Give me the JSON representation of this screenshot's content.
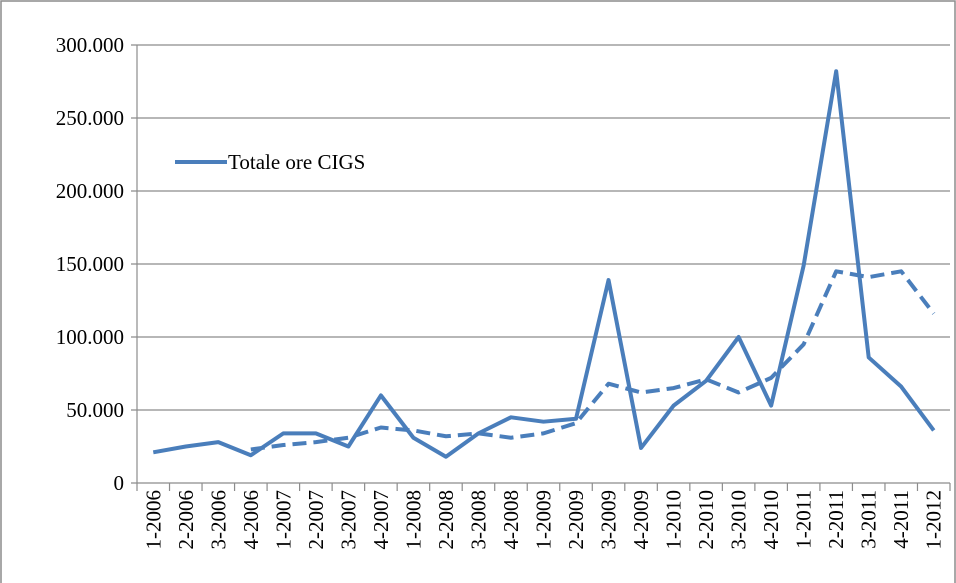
{
  "chart_data": {
    "type": "line",
    "categories": [
      "1-2006",
      "2-2006",
      "3-2006",
      "4-2006",
      "1-2007",
      "2-2007",
      "3-2007",
      "4-2007",
      "1-2008",
      "2-2008",
      "3-2008",
      "4-2008",
      "1-2009",
      "2-2009",
      "3-2009",
      "4-2009",
      "1-2010",
      "2-2010",
      "3-2010",
      "4-2010",
      "1-2011",
      "2-2011",
      "3-2011",
      "4-2011",
      "1-2012"
    ],
    "series": [
      {
        "name": "Totale ore CIGS",
        "color": "#4a7ebb",
        "dash": false,
        "values": [
          21000,
          25000,
          28000,
          19000,
          34000,
          34000,
          25000,
          60000,
          31000,
          18000,
          34000,
          45000,
          42000,
          44000,
          139000,
          24000,
          53000,
          70000,
          100000,
          53000,
          149000,
          282000,
          86000,
          66000,
          36000
        ]
      },
      {
        "color": "#4a7ebb",
        "dash": true,
        "values": [
          null,
          null,
          null,
          23000,
          26000,
          28000,
          31000,
          38000,
          36000,
          32000,
          34000,
          31000,
          34000,
          41000,
          68000,
          62000,
          65000,
          71000,
          62000,
          72000,
          95000,
          145000,
          141000,
          145000,
          116000
        ]
      }
    ],
    "ylim": [
      0,
      300000
    ],
    "yticks": [
      0,
      {
        "value": 50000,
        "label": "50.000"
      },
      {
        "value": 100000,
        "label": "100.000"
      },
      {
        "value": 150000,
        "label": "150.000"
      },
      {
        "value": 200000,
        "label": "200.000"
      },
      {
        "value": 250000,
        "label": "250.000"
      },
      {
        "value": 300000,
        "label": "300.000"
      }
    ],
    "grid": true,
    "legend": "left"
  }
}
